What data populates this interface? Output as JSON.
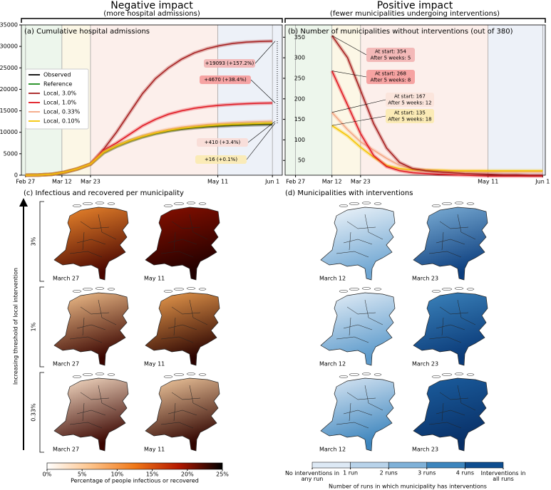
{
  "headings": [
    {
      "title": "Negative impact",
      "subtitle": "(more hospital admissions)"
    },
    {
      "title": "Positive impact",
      "subtitle": "(fewer municipalities undergoing interventions)"
    }
  ],
  "chart_data": [
    {
      "type": "line",
      "title": "(a) Cumulative hospital admissions",
      "x": [
        0,
        5,
        10,
        15,
        20,
        25,
        30,
        35,
        40,
        45,
        50,
        55,
        60,
        65,
        70,
        75,
        80,
        85,
        90,
        95
      ],
      "xlim": [
        -1.6,
        98.8
      ],
      "xticks": [
        {
          "value": 0,
          "label": "Feb 27"
        },
        {
          "value": 14,
          "label": "Mar 12"
        },
        {
          "value": 25,
          "label": "Mar 23"
        },
        {
          "value": 74,
          "label": "May 11"
        },
        {
          "value": 95,
          "label": "Jun 1"
        }
      ],
      "ylim": [
        0,
        35000
      ],
      "yticks": [
        0,
        5000,
        10000,
        15000,
        20000,
        25000,
        30000,
        35000
      ],
      "legend": "upper left",
      "series": [
        {
          "name": "Observed",
          "color": "#000000",
          "values": [
            0,
            40,
            180,
            650,
            1450,
            2550,
            5200,
            6700,
            7900,
            8900,
            9700,
            10300,
            10750,
            11050,
            11300,
            11450,
            11600,
            11700,
            11780,
            11850
          ]
        },
        {
          "name": "Reference",
          "color": "#1a8a1a",
          "values": [
            0,
            50,
            200,
            700,
            1500,
            2600,
            5300,
            6800,
            8000,
            9000,
            9800,
            10400,
            10900,
            11200,
            11500,
            11700,
            11850,
            11950,
            12050,
            12146
          ]
        },
        {
          "name": "Local, 3.0%",
          "color": "#a51c1c",
          "values": [
            0,
            50,
            200,
            700,
            1500,
            2600,
            6000,
            10000,
            14500,
            19000,
            22500,
            25000,
            27000,
            28500,
            29500,
            30200,
            30700,
            31000,
            31150,
            31239
          ]
        },
        {
          "name": "Local, 1.0%",
          "color": "#e0141e",
          "values": [
            0,
            50,
            200,
            700,
            1500,
            2600,
            5800,
            7500,
            9500,
            11500,
            13000,
            14200,
            15000,
            15600,
            16000,
            16300,
            16500,
            16650,
            16750,
            16816
          ]
        },
        {
          "name": "Local, 0.33%",
          "color": "#f4a582",
          "values": [
            0,
            50,
            200,
            700,
            1500,
            2600,
            5350,
            6900,
            8150,
            9200,
            10050,
            10700,
            11200,
            11550,
            11850,
            12050,
            12250,
            12380,
            12480,
            12556
          ]
        },
        {
          "name": "Local, 0.10%",
          "color": "#f5c400",
          "values": [
            0,
            50,
            200,
            700,
            1500,
            2600,
            5300,
            6810,
            8010,
            9010,
            9810,
            10410,
            10910,
            11210,
            11510,
            11710,
            11860,
            11960,
            12060,
            12162
          ]
        }
      ],
      "annotations": [
        "+19093 (+157.2%)",
        "+4670 (+38.4%)",
        "+410 (+3.4%)",
        "+16 (+0.1%)"
      ]
    },
    {
      "type": "line",
      "title": "(b) Number of municipalities without interventions (out of 380)",
      "x": [
        14,
        20,
        25,
        30,
        35,
        40,
        45,
        50,
        55,
        60,
        65,
        70,
        75,
        80,
        85,
        90,
        95
      ],
      "xlim": [
        -4,
        96
      ],
      "xticks": [
        {
          "value": 0,
          "label": "Feb 27"
        },
        {
          "value": 14,
          "label": "Mar 12"
        },
        {
          "value": 25,
          "label": "Mar 23"
        },
        {
          "value": 74,
          "label": "May 11"
        },
        {
          "value": 95,
          "label": "Jun 1"
        }
      ],
      "ylim": [
        14,
        380
      ],
      "yticks": [
        50,
        100,
        150,
        200,
        250,
        300,
        350
      ],
      "series": [
        {
          "name": "Local, 0.33%",
          "color": "#f4a582",
          "values": [
            167,
            125,
            95,
            75,
            55,
            38,
            30,
            27,
            25,
            24,
            23,
            23,
            22,
            22,
            22,
            22,
            22
          ]
        },
        {
          "name": "Local, 0.10%",
          "color": "#f5c400",
          "values": [
            135,
            110,
            82,
            58,
            38,
            30,
            27,
            26,
            26,
            25,
            25,
            25,
            25,
            25,
            25,
            25,
            25
          ]
        },
        {
          "name": "Local, 1.0%",
          "color": "#e0141e",
          "values": [
            268,
            185,
            115,
            62,
            35,
            25,
            20,
            18,
            16,
            15,
            14,
            13,
            12,
            12,
            12,
            12,
            12
          ]
        },
        {
          "name": "Local, 3.0%",
          "color": "#a51c1c",
          "values": [
            354,
            300,
            220,
            140,
            80,
            45,
            30,
            25,
            22,
            20,
            18,
            17,
            16,
            15,
            15,
            14,
            14
          ]
        }
      ],
      "annotations": [
        [
          "At start: 354",
          "After 5 weeks: 5"
        ],
        [
          "At start: 268",
          "After 5 weeks: 8"
        ],
        [
          "At start: 167",
          "After 5 weeks: 12"
        ],
        [
          "At start: 135",
          "After 5 weeks: 18"
        ]
      ]
    },
    {
      "type": "map",
      "title": "(c) Infectious and recovered per municipality",
      "row_axis_label": "Increasing threshold of local intervention",
      "rows": [
        "3%",
        "1%",
        "0.33%"
      ],
      "captions": [
        "March 27",
        "May 11"
      ],
      "colorbar": {
        "lim": [
          0,
          25
        ],
        "colors": [
          "#ffffff",
          "#fdc38a",
          "#f07818",
          "#b41800",
          "#000000"
        ],
        "ticks": [
          {
            "value": 0,
            "label": "0%"
          },
          {
            "value": 5,
            "label": "5%"
          },
          {
            "value": 10,
            "label": "10%"
          },
          {
            "value": 15,
            "label": "15%"
          },
          {
            "value": 20,
            "label": "20%"
          },
          {
            "value": 25,
            "label": "25%"
          }
        ],
        "label": "Percentage of people infectious or recovered"
      }
    },
    {
      "type": "map",
      "title": "(d) Municipalities with interventions",
      "captions": [
        "March 12",
        "March 23"
      ],
      "colorbar": {
        "colors": [
          "#dde9f5",
          "#b8d3ea",
          "#7fb1d8",
          "#3d85bd",
          "#0e4d8f"
        ],
        "categories": [
          "No interventions in any run",
          "1 run",
          "2 runs",
          "3 runs",
          "4 runs",
          "Interventions in all runs"
        ],
        "label": "Number of runs in which municipality has interventions"
      }
    }
  ]
}
